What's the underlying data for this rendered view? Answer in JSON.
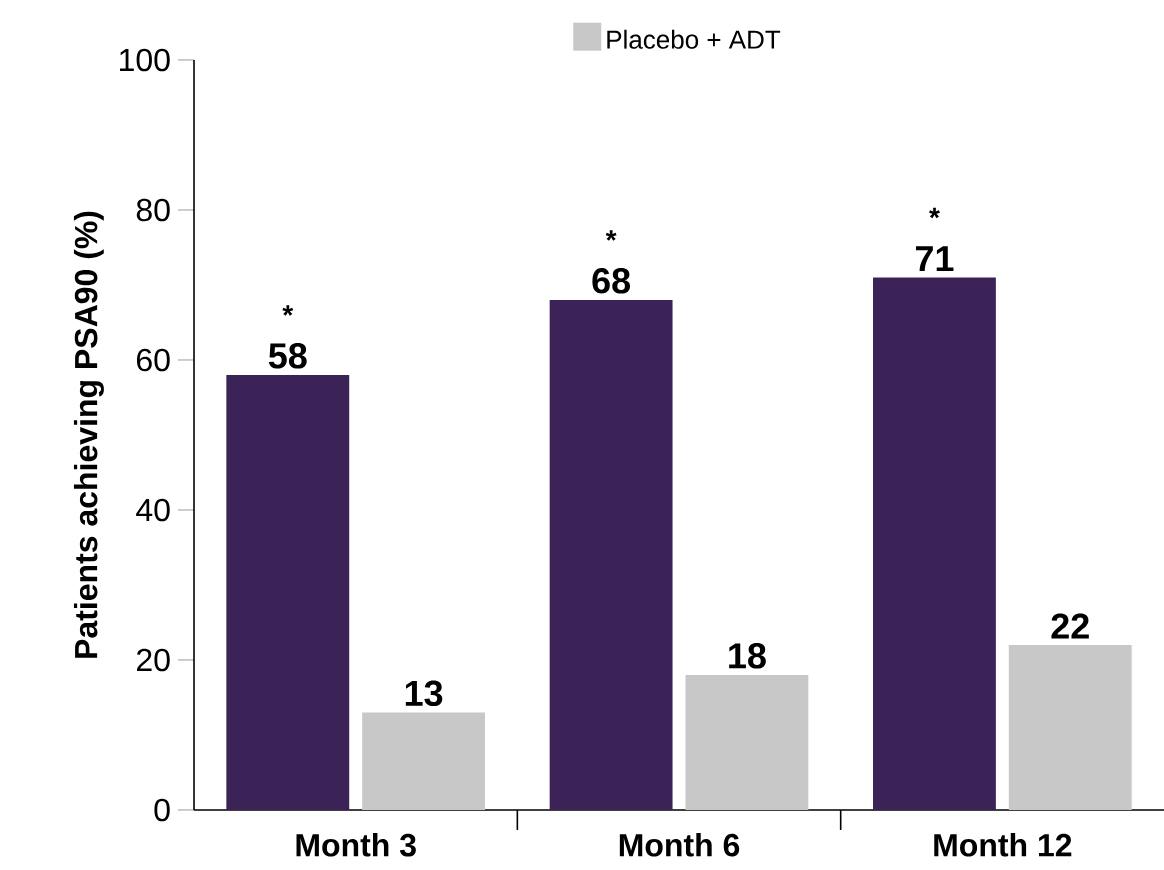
{
  "chart_data": {
    "type": "bar",
    "ylabel": "Patients achieving PSA90 (%)",
    "categories": [
      "Month 3",
      "Month 6",
      "Month 12"
    ],
    "series": [
      {
        "color": "#3b2357",
        "values": [
          58,
          68,
          71
        ]
      },
      {
        "name": "Placebo + ADT",
        "color": "#c8c8c8",
        "values": [
          13,
          18,
          22
        ]
      }
    ],
    "ylim": [
      0,
      100
    ],
    "yticks": [
      0,
      20,
      40,
      60,
      80,
      100
    ],
    "grid": false,
    "legend": "top",
    "data_labels": true,
    "annotations": [
      "*",
      "*",
      "*"
    ]
  }
}
